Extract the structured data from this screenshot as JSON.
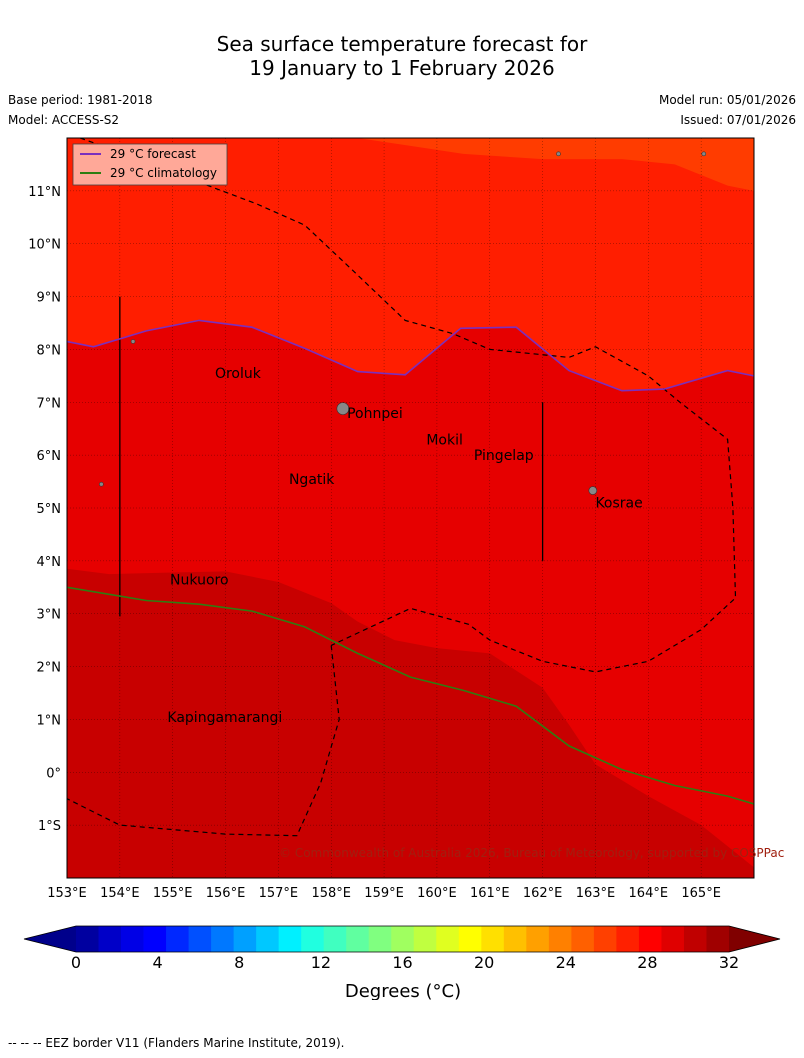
{
  "title": {
    "line1": "Sea surface temperature forecast for",
    "line2": "19 January to 1 February 2026"
  },
  "meta": {
    "base_period": "Base period: 1981-2018",
    "model": "Model: ACCESS-S2",
    "model_run": "Model run: 05/01/2026",
    "issued": "Issued: 07/01/2026"
  },
  "map": {
    "lon_range": [
      153,
      166
    ],
    "lat_range": [
      -2,
      12
    ],
    "lon_ticks": [
      {
        "value": 153,
        "label": "153°E"
      },
      {
        "value": 154,
        "label": "154°E"
      },
      {
        "value": 155,
        "label": "155°E"
      },
      {
        "value": 156,
        "label": "156°E"
      },
      {
        "value": 157,
        "label": "157°E"
      },
      {
        "value": 158,
        "label": "158°E"
      },
      {
        "value": 159,
        "label": "159°E"
      },
      {
        "value": 160,
        "label": "160°E"
      },
      {
        "value": 161,
        "label": "161°E"
      },
      {
        "value": 162,
        "label": "162°E"
      },
      {
        "value": 163,
        "label": "163°E"
      },
      {
        "value": 164,
        "label": "164°E"
      },
      {
        "value": 165,
        "label": "165°E"
      }
    ],
    "lat_ticks": [
      {
        "value": 11,
        "label": "11°N"
      },
      {
        "value": 10,
        "label": "10°N"
      },
      {
        "value": 9,
        "label": "9°N"
      },
      {
        "value": 8,
        "label": "8°N"
      },
      {
        "value": 7,
        "label": "7°N"
      },
      {
        "value": 6,
        "label": "6°N"
      },
      {
        "value": 5,
        "label": "5°N"
      },
      {
        "value": 4,
        "label": "4°N"
      },
      {
        "value": 3,
        "label": "3°N"
      },
      {
        "value": 2,
        "label": "2°N"
      },
      {
        "value": 1,
        "label": "1°N"
      },
      {
        "value": 0,
        "label": "0°"
      },
      {
        "value": -1,
        "label": "1°S"
      }
    ],
    "places": [
      {
        "name": "Oroluk",
        "lon": 155.8,
        "lat": 7.55
      },
      {
        "name": "Pohnpei",
        "lon": 158.3,
        "lat": 6.8
      },
      {
        "name": "Mokil",
        "lon": 159.8,
        "lat": 6.3
      },
      {
        "name": "Pingelap",
        "lon": 160.7,
        "lat": 6.0
      },
      {
        "name": "Ngatik",
        "lon": 157.2,
        "lat": 5.55
      },
      {
        "name": "Kosrae",
        "lon": 163.0,
        "lat": 5.1
      },
      {
        "name": "Nukuoro",
        "lon": 154.95,
        "lat": 3.65
      },
      {
        "name": "Kapingamarangi",
        "lon": 154.9,
        "lat": 1.05
      }
    ],
    "legend": [
      {
        "label": "29 °C  forecast",
        "color": "#7b2fbe"
      },
      {
        "label": "29 °C  climatology",
        "color": "#2e7d11"
      }
    ],
    "forecast_29c_contour": [
      [
        153,
        8.15
      ],
      [
        153.5,
        8.05
      ],
      [
        154.5,
        8.35
      ],
      [
        155.5,
        8.55
      ],
      [
        156.5,
        8.42
      ],
      [
        157.5,
        8.02
      ],
      [
        158.5,
        7.58
      ],
      [
        159.4,
        7.52
      ],
      [
        160.45,
        8.4
      ],
      [
        161.5,
        8.42
      ],
      [
        162.5,
        7.6
      ],
      [
        163.5,
        7.22
      ],
      [
        164.3,
        7.25
      ],
      [
        165.5,
        7.6
      ],
      [
        166,
        7.5
      ]
    ],
    "climatology_29c_contour": [
      [
        153,
        3.5
      ],
      [
        154.5,
        3.25
      ],
      [
        155.5,
        3.18
      ],
      [
        156.5,
        3.05
      ],
      [
        157.5,
        2.75
      ],
      [
        158.5,
        2.25
      ],
      [
        159.5,
        1.8
      ],
      [
        160.5,
        1.55
      ],
      [
        161.5,
        1.25
      ],
      [
        162.5,
        0.5
      ],
      [
        163.5,
        0.05
      ],
      [
        164.5,
        -0.25
      ],
      [
        165.5,
        -0.45
      ],
      [
        166,
        -0.6
      ]
    ],
    "warm_zone_boundary": [
      [
        153,
        3.85
      ],
      [
        153.8,
        3.75
      ],
      [
        155,
        3.78
      ],
      [
        156,
        3.8
      ],
      [
        157,
        3.6
      ],
      [
        158,
        3.2
      ],
      [
        158.5,
        2.85
      ],
      [
        159.2,
        2.5
      ],
      [
        160,
        2.35
      ],
      [
        161,
        2.25
      ],
      [
        162,
        1.6
      ],
      [
        162.5,
        0.9
      ],
      [
        163,
        0.15
      ],
      [
        164,
        -0.45
      ],
      [
        165,
        -1.0
      ],
      [
        166,
        -1.8
      ]
    ],
    "cooler_zone_boundary": [
      [
        158.5,
        12
      ],
      [
        159.5,
        11.85
      ],
      [
        160.5,
        11.7
      ],
      [
        162,
        11.6
      ],
      [
        163.5,
        11.6
      ],
      [
        164.5,
        11.5
      ],
      [
        165.5,
        11.1
      ],
      [
        166,
        11.0
      ]
    ],
    "eez_boundary_north": [
      [
        153.25,
        12.0
      ],
      [
        154.5,
        11.55
      ],
      [
        155.8,
        11.05
      ],
      [
        156.6,
        10.75
      ],
      [
        157.5,
        10.35
      ],
      [
        158.4,
        9.5
      ],
      [
        159.4,
        8.55
      ],
      [
        160.3,
        8.3
      ],
      [
        161.0,
        8.0
      ],
      [
        162.5,
        7.85
      ],
      [
        163.0,
        8.05
      ],
      [
        164.0,
        7.5
      ],
      [
        164.6,
        7.0
      ],
      [
        165.5,
        6.3
      ],
      [
        165.6,
        5.0
      ],
      [
        165.65,
        3.3
      ],
      [
        165.0,
        2.7
      ],
      [
        164.0,
        2.1
      ],
      [
        163.0,
        1.9
      ],
      [
        162.0,
        2.1
      ],
      [
        161.0,
        2.5
      ],
      [
        160.6,
        2.8
      ],
      [
        159.5,
        3.1
      ],
      [
        158.0,
        2.4
      ]
    ],
    "eez_boundary_south": [
      [
        158.0,
        2.4
      ],
      [
        158.15,
        1.0
      ],
      [
        157.8,
        -0.2
      ],
      [
        157.35,
        -1.2
      ],
      [
        156.0,
        -1.17
      ],
      [
        154.0,
        -1.0
      ],
      [
        153.0,
        -0.5
      ]
    ],
    "ref_lines": [
      {
        "lon": 154.0,
        "lat_from": 9.0,
        "lat_to": 2.95
      },
      {
        "lon": 162.0,
        "lat_from": 7.0,
        "lat_to": 4.0
      }
    ],
    "islands": [
      {
        "lon": 158.22,
        "lat": 6.88,
        "size": 6
      },
      {
        "lon": 162.95,
        "lat": 5.33,
        "size": 4
      },
      {
        "lon": 154.25,
        "lat": 8.15,
        "size": 2
      },
      {
        "lon": 153.65,
        "lat": 5.45,
        "size": 2
      },
      {
        "lon": 162.3,
        "lat": 11.7,
        "size": 2
      },
      {
        "lon": 165.05,
        "lat": 11.7,
        "size": 2
      }
    ],
    "copyright": "© Commonwealth of Australia 2026, Bureau of Meteorology, supported by COSPPac"
  },
  "colorbar": {
    "min": 0,
    "max": 32,
    "ticks": [
      {
        "value": 0,
        "label": "0"
      },
      {
        "value": 4,
        "label": "4"
      },
      {
        "value": 8,
        "label": "8"
      },
      {
        "value": 12,
        "label": "12"
      },
      {
        "value": 16,
        "label": "16"
      },
      {
        "value": 20,
        "label": "20"
      },
      {
        "value": 24,
        "label": "24"
      },
      {
        "value": 28,
        "label": "28"
      },
      {
        "value": 32,
        "label": "32"
      }
    ],
    "colors": [
      "#0000a0",
      "#0000c8",
      "#0000e6",
      "#0000ff",
      "#0028ff",
      "#0050ff",
      "#0078ff",
      "#00a0ff",
      "#00c8ff",
      "#00f0ff",
      "#20ffe0",
      "#40ffc0",
      "#60ffa0",
      "#80ff80",
      "#a0ff60",
      "#c0ff40",
      "#e0ff20",
      "#ffff00",
      "#ffe000",
      "#ffc000",
      "#ffa000",
      "#ff8000",
      "#ff6000",
      "#ff4000",
      "#ff2000",
      "#ff0000",
      "#e00000",
      "#c00000",
      "#a00000"
    ],
    "under_color": "#00008b",
    "over_color": "#800000",
    "label": "Degrees (°C)"
  },
  "sst_colors": {
    "cooler": "#ff3c00",
    "main": "#ff1e00",
    "warmer": "#e60000",
    "warmest": "#c80000"
  },
  "footer": {
    "eez_note": "--  --  -- EEZ border V11 (Flanders Marine Institute, 2019)."
  }
}
